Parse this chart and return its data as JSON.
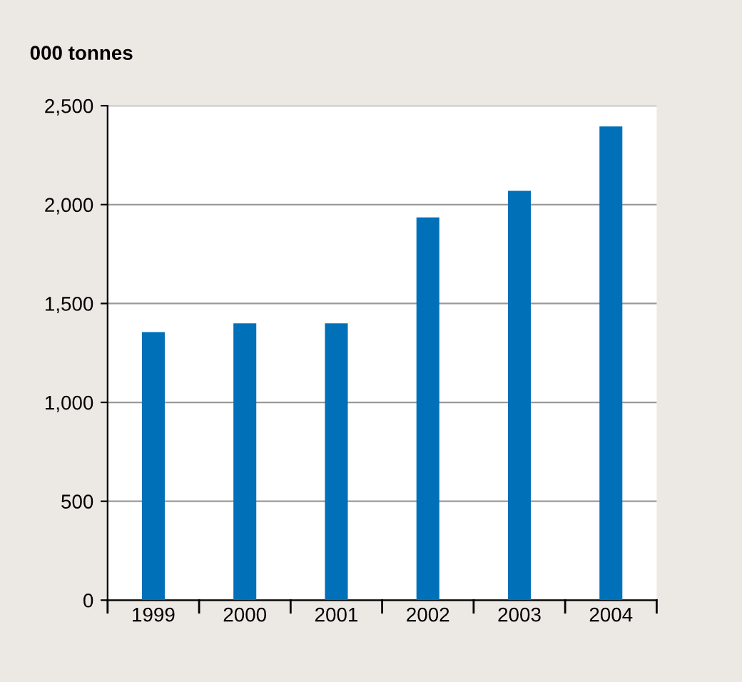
{
  "chart_data": {
    "type": "bar",
    "ylabel": "000 tonnes",
    "categories": [
      "1999",
      "2000",
      "2001",
      "2002",
      "2003",
      "2004"
    ],
    "values": [
      1355,
      1400,
      1400,
      1935,
      2070,
      2395
    ],
    "color": "#0070b8",
    "ylim": [
      0,
      2500
    ],
    "yticks": [
      {
        "value": 0,
        "label": "0"
      },
      {
        "value": 500,
        "label": "500"
      },
      {
        "value": 1000,
        "label": "1,000"
      },
      {
        "value": 1500,
        "label": "1,500"
      },
      {
        "value": 2000,
        "label": "2,000"
      },
      {
        "value": 2500,
        "label": "2,500"
      }
    ],
    "grid": "y"
  }
}
